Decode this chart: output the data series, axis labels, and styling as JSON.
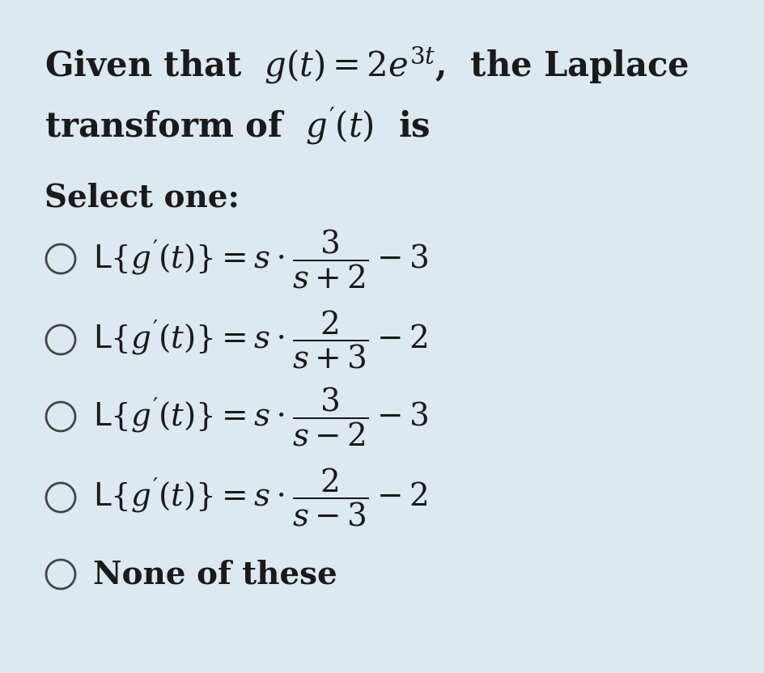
{
  "background_color": "#dde9f1",
  "title_line1": "Given that  $g(t) = 2e^{3t}$,  the Laplace",
  "title_line2": "transform of  $g'(t)$  is",
  "select_one": "Select one:",
  "options": [
    "$\\mathcal{L}\\{g'(t)\\} = s \\cdot \\dfrac{3}{s+2} - 3$",
    "$\\mathcal{L}\\{g'(t)\\} = s \\cdot \\dfrac{2}{s+3} - 2$",
    "$\\mathcal{L}\\{g'(t)\\} = s \\cdot \\dfrac{3}{s-2} - 3$",
    "$\\mathcal{L}\\{g'(t)\\} = s \\cdot \\dfrac{2}{s-3} - 2$",
    "None of these"
  ],
  "text_color": "#1a1a1a",
  "circle_color": "#444444",
  "title_fontsize": 30,
  "option_fontsize": 28,
  "select_fontsize": 28,
  "figsize": [
    9.44,
    8.32
  ],
  "dpi": 100
}
